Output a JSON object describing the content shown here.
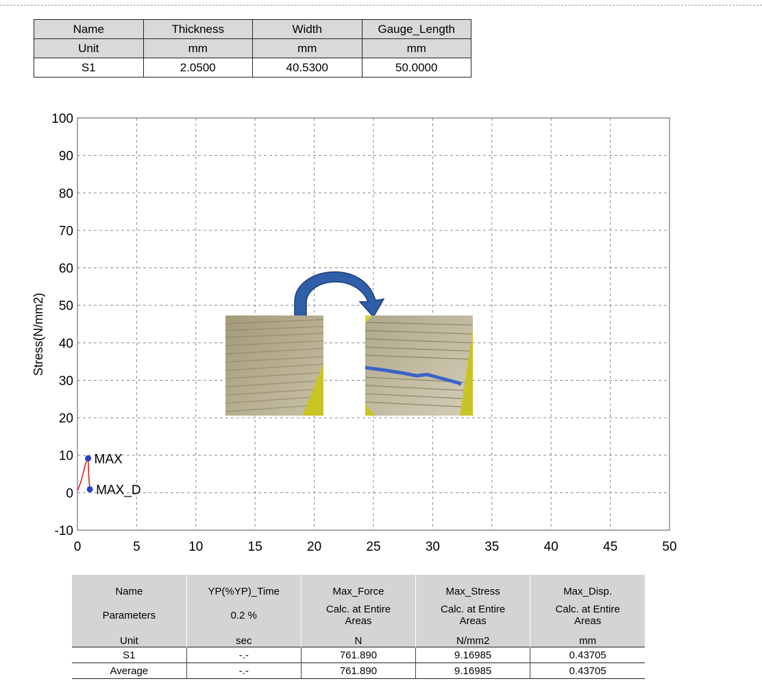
{
  "specimen_table": {
    "headers": [
      "Name",
      "Thickness",
      "Width",
      "Gauge_Length"
    ],
    "units": [
      "Unit",
      "mm",
      "mm",
      "mm"
    ],
    "rows": [
      [
        "S1",
        "2.0500",
        "40.5300",
        "50.0000"
      ]
    ]
  },
  "chart_data": {
    "type": "line",
    "title": "",
    "xlabel": "",
    "ylabel": "Stress(N/mm2)",
    "xlim": [
      0,
      50
    ],
    "ylim": [
      -10,
      100
    ],
    "xticks": [
      0,
      5,
      10,
      15,
      20,
      25,
      30,
      35,
      40,
      45,
      50
    ],
    "yticks": [
      -10,
      0,
      10,
      20,
      30,
      40,
      50,
      60,
      70,
      80,
      90,
      100
    ],
    "grid": true,
    "series": [
      {
        "color": "#d42020",
        "x": [
          0,
          0.3,
          0.55,
          0.7,
          0.9,
          0.95,
          1.0,
          1.05
        ],
        "y": [
          0.5,
          3.0,
          6.0,
          8.0,
          9.17,
          5.0,
          2.5,
          0.9
        ]
      }
    ],
    "markers": [
      {
        "label": "MAX",
        "x": 0.9,
        "y": 9.17,
        "color": "#2a3fc8"
      },
      {
        "label": "MAX_D",
        "x": 1.05,
        "y": 0.9,
        "color": "#2a3fc8"
      }
    ]
  },
  "images": {
    "before_photo": "specimen-before-photo",
    "after_photo": "specimen-after-photo",
    "arrow_color": "#2e5fa8"
  },
  "results_table": {
    "names": [
      "Name",
      "YP(%YP)_Time",
      "Max_Force",
      "Max_Stress",
      "Max_Disp."
    ],
    "parameters": [
      "Parameters",
      "0.2 %",
      "Calc. at Entire Areas",
      "Calc. at Entire Areas",
      "Calc. at Entire Areas"
    ],
    "units": [
      "Unit",
      "sec",
      "N",
      "N/mm2",
      "mm"
    ],
    "rows": [
      [
        "S1",
        "-.-",
        "761.890",
        "9.16985",
        "0.43705"
      ],
      [
        "Average",
        "-.-",
        "761.890",
        "9.16985",
        "0.43705"
      ]
    ]
  }
}
